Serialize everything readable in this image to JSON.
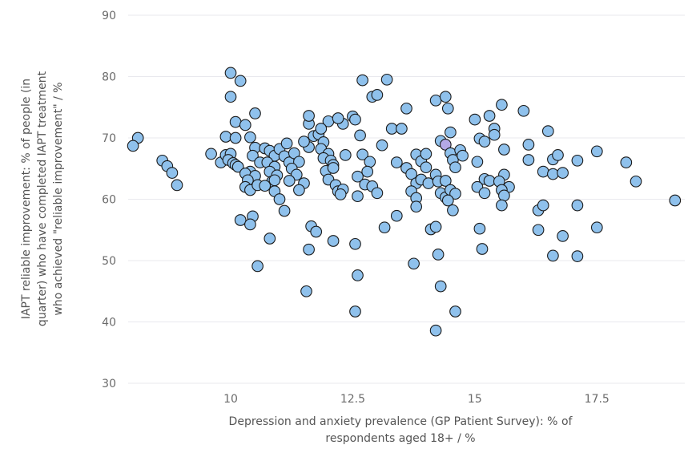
{
  "chart_data": {
    "type": "scatter",
    "title": "",
    "xlabel": [
      "Depression and anxiety prevalence (GP Patient Survey): % of",
      "respondents aged 18+ / %"
    ],
    "ylabel": [
      "IAPT reliable improvement: % of people (in",
      "quarter) who have completed IAPT treatment",
      "who achieved \"reliable improvement\" / %"
    ],
    "xlim": [
      7.9,
      19.3
    ],
    "ylim": [
      30,
      90
    ],
    "x_ticks": [
      "10",
      "12.5",
      "15",
      "17.5"
    ],
    "y_ticks": [
      "30",
      "40",
      "50",
      "60",
      "70",
      "80",
      "90"
    ],
    "grid": "horizontal",
    "colors": {
      "point_fill": "#8fc1ec",
      "point_fill_highlight": "#b4a8e6",
      "point_stroke": "#1a1a1a",
      "grid": "#e9e9ee"
    },
    "points": [
      [
        8.1,
        70.0
      ],
      [
        8.0,
        68.7
      ],
      [
        8.6,
        66.3
      ],
      [
        8.7,
        65.4
      ],
      [
        8.8,
        64.3
      ],
      [
        8.9,
        62.3
      ],
      [
        9.6,
        67.4
      ],
      [
        9.8,
        66.0
      ],
      [
        9.9,
        67.2
      ],
      [
        10.0,
        67.4
      ],
      [
        9.95,
        66.4
      ],
      [
        10.05,
        65.9
      ],
      [
        10.1,
        65.6
      ],
      [
        10.15,
        65.3
      ],
      [
        10.0,
        80.6
      ],
      [
        10.0,
        76.7
      ],
      [
        10.2,
        79.3
      ],
      [
        10.1,
        72.6
      ],
      [
        10.3,
        72.1
      ],
      [
        10.4,
        70.1
      ],
      [
        9.9,
        70.2
      ],
      [
        10.1,
        70.0
      ],
      [
        10.5,
        68.4
      ],
      [
        10.45,
        67.1
      ],
      [
        10.6,
        66.0
      ],
      [
        10.4,
        64.5
      ],
      [
        10.3,
        64.2
      ],
      [
        10.5,
        63.8
      ],
      [
        10.35,
        63.1
      ],
      [
        10.3,
        62.0
      ],
      [
        10.4,
        61.5
      ],
      [
        10.55,
        62.3
      ],
      [
        10.5,
        74.0
      ],
      [
        10.2,
        56.6
      ],
      [
        10.45,
        57.2
      ],
      [
        10.4,
        55.9
      ],
      [
        10.55,
        49.1
      ],
      [
        10.7,
        68.3
      ],
      [
        10.8,
        67.9
      ],
      [
        10.9,
        67.1
      ],
      [
        10.75,
        66.0
      ],
      [
        10.9,
        65.3
      ],
      [
        10.8,
        64.5
      ],
      [
        10.95,
        63.9
      ],
      [
        10.85,
        62.9
      ],
      [
        10.7,
        62.2
      ],
      [
        10.9,
        61.3
      ],
      [
        11.0,
        60.0
      ],
      [
        11.1,
        58.1
      ],
      [
        10.8,
        53.6
      ],
      [
        10.9,
        63.1
      ],
      [
        11.0,
        68.2
      ],
      [
        11.1,
        67.0
      ],
      [
        11.2,
        66.0
      ],
      [
        11.15,
        69.1
      ],
      [
        11.3,
        67.5
      ],
      [
        11.4,
        66.1
      ],
      [
        11.25,
        65.0
      ],
      [
        11.35,
        64.0
      ],
      [
        11.2,
        63.0
      ],
      [
        11.5,
        62.6
      ],
      [
        11.4,
        61.5
      ],
      [
        11.6,
        68.5
      ],
      [
        11.5,
        69.4
      ],
      [
        11.7,
        70.3
      ],
      [
        11.6,
        72.3
      ],
      [
        11.6,
        73.6
      ],
      [
        11.65,
        55.6
      ],
      [
        11.75,
        54.7
      ],
      [
        11.6,
        51.8
      ],
      [
        11.55,
        45.0
      ],
      [
        11.8,
        70.6
      ],
      [
        11.9,
        69.3
      ],
      [
        11.85,
        68.2
      ],
      [
        12.0,
        67.4
      ],
      [
        11.9,
        66.7
      ],
      [
        12.05,
        66.3
      ],
      [
        12.1,
        65.6
      ],
      [
        11.95,
        64.6
      ],
      [
        12.0,
        63.2
      ],
      [
        12.15,
        62.3
      ],
      [
        12.2,
        61.3
      ],
      [
        12.3,
        61.6
      ],
      [
        12.25,
        60.8
      ],
      [
        12.0,
        72.7
      ],
      [
        11.85,
        71.5
      ],
      [
        12.3,
        72.3
      ],
      [
        12.2,
        73.2
      ],
      [
        12.1,
        65.1
      ],
      [
        12.35,
        67.2
      ],
      [
        12.1,
        53.2
      ],
      [
        12.5,
        73.5
      ],
      [
        12.55,
        73.0
      ],
      [
        12.65,
        70.4
      ],
      [
        12.7,
        67.3
      ],
      [
        12.85,
        66.1
      ],
      [
        12.8,
        64.5
      ],
      [
        12.6,
        63.7
      ],
      [
        12.75,
        62.4
      ],
      [
        12.9,
        62.1
      ],
      [
        12.6,
        60.5
      ],
      [
        12.7,
        79.4
      ],
      [
        12.9,
        76.7
      ],
      [
        13.0,
        77.0
      ],
      [
        13.2,
        79.5
      ],
      [
        12.55,
        52.7
      ],
      [
        12.6,
        47.6
      ],
      [
        12.55,
        41.7
      ],
      [
        13.0,
        61.0
      ],
      [
        13.1,
        68.8
      ],
      [
        13.3,
        71.5
      ],
      [
        13.15,
        55.4
      ],
      [
        13.4,
        57.3
      ],
      [
        13.5,
        71.5
      ],
      [
        13.6,
        74.8
      ],
      [
        13.4,
        66.0
      ],
      [
        13.6,
        65.1
      ],
      [
        13.7,
        64.1
      ],
      [
        13.8,
        62.6
      ],
      [
        13.7,
        61.3
      ],
      [
        13.8,
        67.3
      ],
      [
        13.9,
        66.2
      ],
      [
        13.8,
        60.2
      ],
      [
        13.8,
        58.8
      ],
      [
        13.75,
        49.5
      ],
      [
        13.9,
        63.2
      ],
      [
        14.0,
        67.4
      ],
      [
        14.0,
        65.2
      ],
      [
        14.1,
        55.1
      ],
      [
        14.05,
        62.6
      ],
      [
        14.2,
        76.1
      ],
      [
        14.3,
        69.5
      ],
      [
        14.2,
        64.0
      ],
      [
        14.25,
        62.9
      ],
      [
        14.3,
        61.0
      ],
      [
        14.4,
        60.3
      ],
      [
        14.2,
        55.5
      ],
      [
        14.25,
        51.0
      ],
      [
        14.3,
        45.8
      ],
      [
        14.2,
        38.6
      ],
      [
        14.4,
        76.7
      ],
      [
        14.45,
        74.8
      ],
      [
        14.5,
        70.9
      ],
      [
        14.4,
        68.9
      ],
      [
        14.5,
        67.5
      ],
      [
        14.55,
        66.4
      ],
      [
        14.6,
        65.2
      ],
      [
        14.4,
        63.0
      ],
      [
        14.5,
        61.5
      ],
      [
        14.6,
        60.9
      ],
      [
        14.45,
        59.8
      ],
      [
        14.55,
        58.2
      ],
      [
        14.6,
        41.7
      ],
      [
        14.7,
        68.0
      ],
      [
        14.75,
        67.1
      ],
      [
        15.0,
        73.0
      ],
      [
        15.1,
        69.9
      ],
      [
        15.2,
        69.4
      ],
      [
        15.05,
        66.1
      ],
      [
        15.2,
        63.3
      ],
      [
        15.3,
        63.0
      ],
      [
        15.05,
        62.0
      ],
      [
        15.2,
        61.0
      ],
      [
        15.1,
        55.2
      ],
      [
        15.15,
        51.9
      ],
      [
        15.3,
        73.6
      ],
      [
        15.4,
        71.5
      ],
      [
        15.4,
        70.5
      ],
      [
        15.55,
        75.4
      ],
      [
        15.6,
        68.1
      ],
      [
        15.6,
        64.0
      ],
      [
        15.5,
        62.9
      ],
      [
        15.7,
        62.0
      ],
      [
        15.55,
        61.5
      ],
      [
        15.6,
        60.6
      ],
      [
        15.55,
        59.0
      ],
      [
        16.0,
        74.4
      ],
      [
        16.1,
        68.9
      ],
      [
        16.1,
        66.4
      ],
      [
        16.3,
        55.0
      ],
      [
        16.3,
        58.2
      ],
      [
        16.4,
        59.0
      ],
      [
        16.4,
        64.5
      ],
      [
        16.5,
        71.1
      ],
      [
        16.6,
        66.5
      ],
      [
        16.7,
        67.2
      ],
      [
        16.6,
        64.1
      ],
      [
        16.8,
        64.3
      ],
      [
        16.6,
        50.8
      ],
      [
        16.8,
        54.0
      ],
      [
        17.1,
        66.3
      ],
      [
        17.1,
        59.0
      ],
      [
        17.1,
        50.7
      ],
      [
        17.5,
        67.8
      ],
      [
        17.5,
        55.4
      ],
      [
        18.1,
        66.0
      ],
      [
        18.3,
        62.9
      ],
      [
        19.1,
        59.8
      ]
    ],
    "highlighted_point_indices": [
      143
    ]
  }
}
